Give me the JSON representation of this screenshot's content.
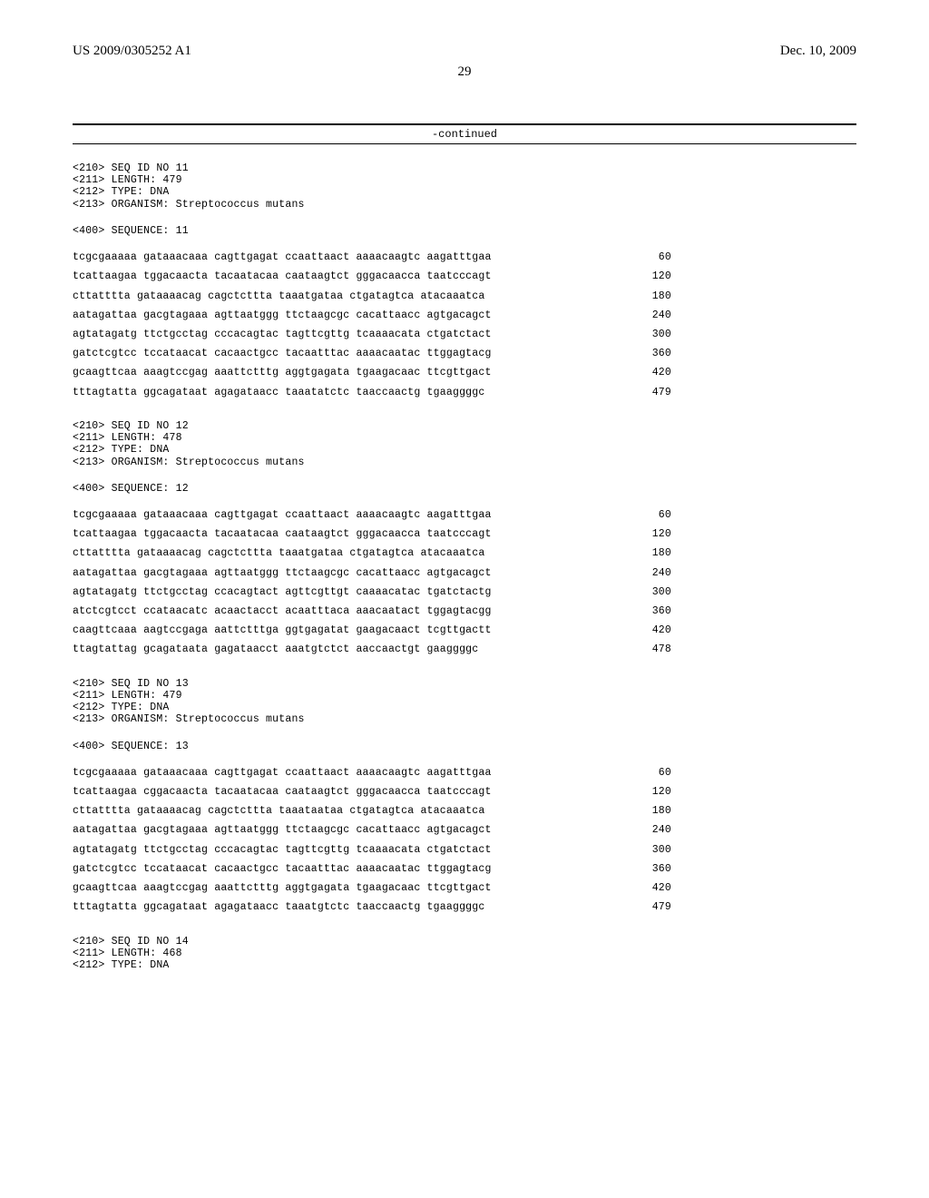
{
  "header": {
    "left": "US 2009/0305252 A1",
    "right": "Dec. 10, 2009"
  },
  "page_number": "29",
  "continued_label": "-continued",
  "sequences": [
    {
      "meta": [
        "<210> SEQ ID NO 11",
        "<211> LENGTH: 479",
        "<212> TYPE: DNA",
        "<213> ORGANISM: Streptococcus mutans"
      ],
      "sequence_label": "<400> SEQUENCE: 11",
      "rows": [
        {
          "text": "tcgcgaaaaa gataaacaaa cagttgagat ccaattaact aaaacaagtc aagatttgaa",
          "pos": "60"
        },
        {
          "text": "tcattaagaa tggacaacta tacaatacaa caataagtct gggacaacca taatcccagt",
          "pos": "120"
        },
        {
          "text": "cttatttta gataaaacag cagctcttta taaatgataa ctgatagtca atacaaatca",
          "pos": "180"
        },
        {
          "text": "aatagattaa gacgtagaaa agttaatggg ttctaagcgc cacattaacc agtgacagct",
          "pos": "240"
        },
        {
          "text": "agtatagatg ttctgcctag cccacagtac tagttcgttg tcaaaacata ctgatctact",
          "pos": "300"
        },
        {
          "text": "gatctcgtcc tccataacat cacaactgcc tacaatttac aaaacaatac ttggagtacg",
          "pos": "360"
        },
        {
          "text": "gcaagttcaa aaagtccgag aaattctttg aggtgagata tgaagacaac ttcgttgact",
          "pos": "420"
        },
        {
          "text": "tttagtatta ggcagataat agagataacc taaatatctc taaccaactg tgaaggggc",
          "pos": "479"
        }
      ]
    },
    {
      "meta": [
        "<210> SEQ ID NO 12",
        "<211> LENGTH: 478",
        "<212> TYPE: DNA",
        "<213> ORGANISM: Streptococcus mutans"
      ],
      "sequence_label": "<400> SEQUENCE: 12",
      "rows": [
        {
          "text": "tcgcgaaaaa gataaacaaa cagttgagat ccaattaact aaaacaagtc aagatttgaa",
          "pos": "60"
        },
        {
          "text": "tcattaagaa tggacaacta tacaatacaa caataagtct gggacaacca taatcccagt",
          "pos": "120"
        },
        {
          "text": "cttatttta gataaaacag cagctcttta taaatgataa ctgatagtca atacaaatca",
          "pos": "180"
        },
        {
          "text": "aatagattaa gacgtagaaa agttaatggg ttctaagcgc cacattaacc agtgacagct",
          "pos": "240"
        },
        {
          "text": "agtatagatg ttctgcctag ccacagtact agttcgttgt caaaacatac tgatctactg",
          "pos": "300"
        },
        {
          "text": "atctcgtcct ccataacatc acaactacct acaatttaca aaacaatact tggagtacgg",
          "pos": "360"
        },
        {
          "text": "caagttcaaa aagtccgaga aattctttga ggtgagatat gaagacaact tcgttgactt",
          "pos": "420"
        },
        {
          "text": "ttagtattag gcagataata gagataacct aaatgtctct aaccaactgt gaaggggc",
          "pos": "478"
        }
      ]
    },
    {
      "meta": [
        "<210> SEQ ID NO 13",
        "<211> LENGTH: 479",
        "<212> TYPE: DNA",
        "<213> ORGANISM: Streptococcus mutans"
      ],
      "sequence_label": "<400> SEQUENCE: 13",
      "rows": [
        {
          "text": "tcgcgaaaaa gataaacaaa cagttgagat ccaattaact aaaacaagtc aagatttgaa",
          "pos": "60"
        },
        {
          "text": "tcattaagaa cggacaacta tacaatacaa caataagtct gggacaacca taatcccagt",
          "pos": "120"
        },
        {
          "text": "cttatttta gataaaacag cagctcttta taaataataa ctgatagtca atacaaatca",
          "pos": "180"
        },
        {
          "text": "aatagattaa gacgtagaaa agttaatggg ttctaagcgc cacattaacc agtgacagct",
          "pos": "240"
        },
        {
          "text": "agtatagatg ttctgcctag cccacagtac tagttcgttg tcaaaacata ctgatctact",
          "pos": "300"
        },
        {
          "text": "gatctcgtcc tccataacat cacaactgcc tacaatttac aaaacaatac ttggagtacg",
          "pos": "360"
        },
        {
          "text": "gcaagttcaa aaagtccgag aaattctttg aggtgagata tgaagacaac ttcgttgact",
          "pos": "420"
        },
        {
          "text": "tttagtatta ggcagataat agagataacc taaatgtctc taaccaactg tgaaggggc",
          "pos": "479"
        }
      ]
    },
    {
      "meta": [
        "<210> SEQ ID NO 14",
        "<211> LENGTH: 468",
        "<212> TYPE: DNA"
      ],
      "sequence_label": "",
      "rows": []
    }
  ]
}
